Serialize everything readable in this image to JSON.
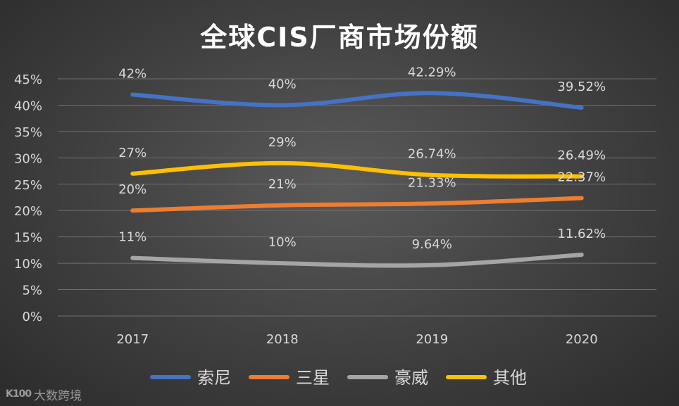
{
  "chart_data": {
    "type": "line",
    "title": "全球CIS厂商市场份额",
    "xlabel": "",
    "ylabel": "",
    "categories": [
      "2017",
      "2018",
      "2019",
      "2020"
    ],
    "ylim": [
      0,
      45
    ],
    "yticks": [
      "0%",
      "5%",
      "10%",
      "15%",
      "20%",
      "25%",
      "30%",
      "35%",
      "40%",
      "45%"
    ],
    "grid": true,
    "legend_position": "bottom",
    "series": [
      {
        "name": "索尼",
        "color": "#4472C4",
        "values": [
          42,
          40,
          42.29,
          39.52
        ],
        "labels": [
          "42%",
          "40%",
          "42.29%",
          "39.52%"
        ]
      },
      {
        "name": "三星",
        "color": "#ED7D31",
        "values": [
          20,
          21,
          21.33,
          22.37
        ],
        "labels": [
          "20%",
          "21%",
          "21.33%",
          "22.37%"
        ]
      },
      {
        "name": "豪威",
        "color": "#A5A5A5",
        "values": [
          11,
          10,
          9.64,
          11.62
        ],
        "labels": [
          "11%",
          "10%",
          "9.64%",
          "11.62%"
        ]
      },
      {
        "name": "其他",
        "color": "#FFC000",
        "values": [
          27,
          29,
          26.74,
          26.49
        ],
        "labels": [
          "27%",
          "29%",
          "26.74%",
          "26.49%"
        ]
      }
    ]
  },
  "watermark": {
    "logo": "K100",
    "text": "大数跨境"
  }
}
